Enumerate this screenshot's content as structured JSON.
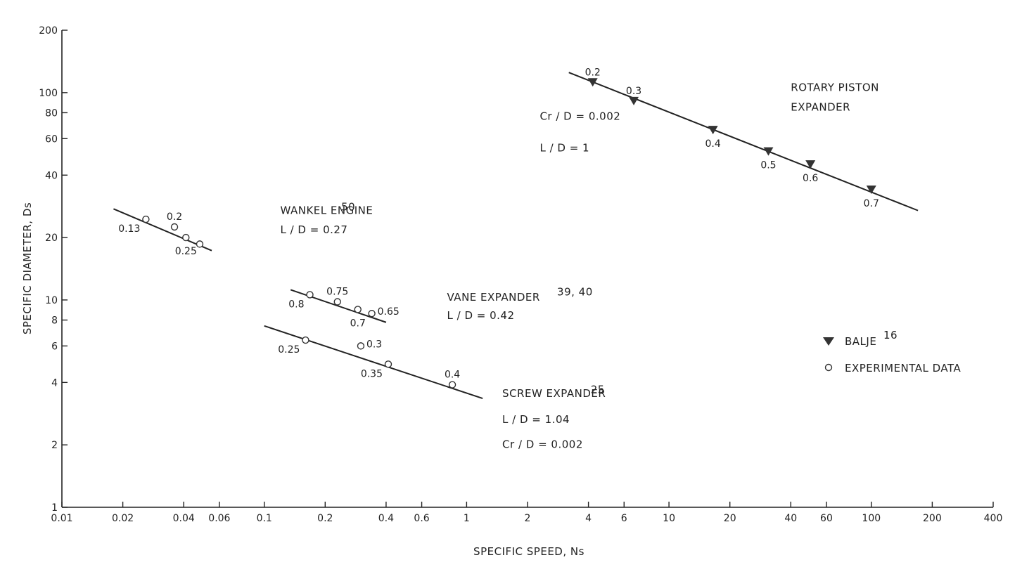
{
  "chart_data": {
    "type": "scatter",
    "title": "",
    "xlabel": "SPECIFIC SPEED, Ns",
    "ylabel": "SPECIFIC DIAMETER, Ds",
    "xscale": "log",
    "yscale": "log",
    "xlim": [
      0.01,
      400
    ],
    "ylim": [
      1,
      200
    ],
    "grid": false,
    "x_ticks": [
      {
        "v": 0.01,
        "label": "0.01"
      },
      {
        "v": 0.02,
        "label": "0.02"
      },
      {
        "v": 0.04,
        "label": "0.04"
      },
      {
        "v": 0.06,
        "label": "0.06"
      },
      {
        "v": 0.1,
        "label": "0.1"
      },
      {
        "v": 0.2,
        "label": "0.2"
      },
      {
        "v": 0.4,
        "label": "0.4"
      },
      {
        "v": 0.6,
        "label": "0.6"
      },
      {
        "v": 1,
        "label": "1"
      },
      {
        "v": 2,
        "label": "2"
      },
      {
        "v": 4,
        "label": "4"
      },
      {
        "v": 6,
        "label": "6"
      },
      {
        "v": 10,
        "label": "10"
      },
      {
        "v": 20,
        "label": "20"
      },
      {
        "v": 40,
        "label": "40"
      },
      {
        "v": 60,
        "label": "60"
      },
      {
        "v": 100,
        "label": "100"
      },
      {
        "v": 200,
        "label": "200"
      },
      {
        "v": 400,
        "label": "400"
      }
    ],
    "y_ticks": [
      {
        "v": 1,
        "label": "1"
      },
      {
        "v": 2,
        "label": "2"
      },
      {
        "v": 4,
        "label": "4"
      },
      {
        "v": 6,
        "label": "6"
      },
      {
        "v": 8,
        "label": "8"
      },
      {
        "v": 10,
        "label": "10"
      },
      {
        "v": 20,
        "label": "20"
      },
      {
        "v": 40,
        "label": "40"
      },
      {
        "v": 60,
        "label": "60"
      },
      {
        "v": 80,
        "label": "80"
      },
      {
        "v": 100,
        "label": "100"
      },
      {
        "v": 200,
        "label": "200"
      }
    ],
    "legend": {
      "position": "right",
      "entries": [
        {
          "marker": "triangle-down-filled",
          "label": "BALJE",
          "ref": "16"
        },
        {
          "marker": "circle-open",
          "label": "EXPERIMENTAL DATA",
          "ref": ""
        }
      ]
    },
    "series": [
      {
        "marker": "triangle-down-filled",
        "fit_line": [
          [
            3.2,
            125
          ],
          [
            170,
            27
          ]
        ],
        "points": [
          {
            "x": 4.2,
            "y": 112,
            "label": "0.2",
            "label_pos": "above"
          },
          {
            "x": 6.7,
            "y": 91,
            "label": "0.3",
            "label_pos": "above"
          },
          {
            "x": 16.5,
            "y": 66,
            "label": "0.4",
            "label_pos": "below"
          },
          {
            "x": 31,
            "y": 52,
            "label": "0.5",
            "label_pos": "below"
          },
          {
            "x": 50,
            "y": 45,
            "label": "0.6",
            "label_pos": "below"
          },
          {
            "x": 100,
            "y": 34,
            "label": "0.7",
            "label_pos": "below"
          }
        ]
      },
      {
        "marker": "circle-open",
        "fit_line": [
          [
            0.018,
            27.5
          ],
          [
            0.055,
            17.3
          ]
        ],
        "points": [
          {
            "x": 0.026,
            "y": 24.5,
            "label": "0.13",
            "label_pos": "below-left"
          },
          {
            "x": 0.036,
            "y": 22.5,
            "label": "0.2",
            "label_pos": "above"
          },
          {
            "x": 0.041,
            "y": 20,
            "label": "0.25",
            "label_pos": "below"
          },
          {
            "x": 0.048,
            "y": 18.6,
            "label": "",
            "label_pos": "none"
          }
        ]
      },
      {
        "marker": "circle-open",
        "fit_line": [
          [
            0.135,
            11.2
          ],
          [
            0.4,
            7.8
          ]
        ],
        "points": [
          {
            "x": 0.168,
            "y": 10.6,
            "label": "0.8",
            "label_pos": "below-left"
          },
          {
            "x": 0.23,
            "y": 9.8,
            "label": "0.75",
            "label_pos": "above"
          },
          {
            "x": 0.29,
            "y": 9.0,
            "label": "0.7",
            "label_pos": "below"
          },
          {
            "x": 0.34,
            "y": 8.6,
            "label": "0.65",
            "label_pos": "right"
          }
        ]
      },
      {
        "marker": "circle-open",
        "fit_line": [
          [
            0.1,
            7.5
          ],
          [
            1.2,
            3.35
          ]
        ],
        "points": [
          {
            "x": 0.16,
            "y": 6.4,
            "label": "0.25",
            "label_pos": "below-left"
          },
          {
            "x": 0.3,
            "y": 6.0,
            "label": "0.3",
            "label_pos": "right"
          },
          {
            "x": 0.41,
            "y": 4.9,
            "label": "0.35",
            "label_pos": "below-left"
          },
          {
            "x": 0.85,
            "y": 3.9,
            "label": "0.4",
            "label_pos": "above"
          }
        ]
      }
    ],
    "annotations": [
      {
        "id": "rotary-title-1",
        "text": "ROTARY PISTON",
        "x": 40,
        "y": 102
      },
      {
        "id": "rotary-title-2",
        "text": "EXPANDER",
        "x": 40,
        "y": 82
      },
      {
        "id": "rotary-cr",
        "text": "Cr / D = 0.002",
        "x": 2.3,
        "y": 74
      },
      {
        "id": "rotary-ld",
        "text": "L / D = 1",
        "x": 2.3,
        "y": 52
      },
      {
        "id": "wankel-title",
        "text": "WANKEL ENGINE",
        "x": 0.12,
        "y": 26
      },
      {
        "id": "wankel-ref",
        "text": "50",
        "x": 0.24,
        "y": 27
      },
      {
        "id": "wankel-ld",
        "text": "L / D = 0.27",
        "x": 0.12,
        "y": 21
      },
      {
        "id": "vane-title",
        "text": "VANE EXPANDER",
        "x": 0.8,
        "y": 9.9
      },
      {
        "id": "vane-ref",
        "text": "39, 40",
        "x": 2.8,
        "y": 10.5
      },
      {
        "id": "vane-ld",
        "text": "L / D = 0.42",
        "x": 0.8,
        "y": 8.1
      },
      {
        "id": "screw-title",
        "text": "SCREW EXPANDER",
        "x": 1.5,
        "y": 3.4
      },
      {
        "id": "screw-ref",
        "text": "25",
        "x": 4.1,
        "y": 3.55
      },
      {
        "id": "screw-ld",
        "text": "L / D = 1.04",
        "x": 1.5,
        "y": 2.55
      },
      {
        "id": "screw-cr",
        "text": "Cr / D = 0.002",
        "x": 1.5,
        "y": 1.93
      }
    ]
  }
}
